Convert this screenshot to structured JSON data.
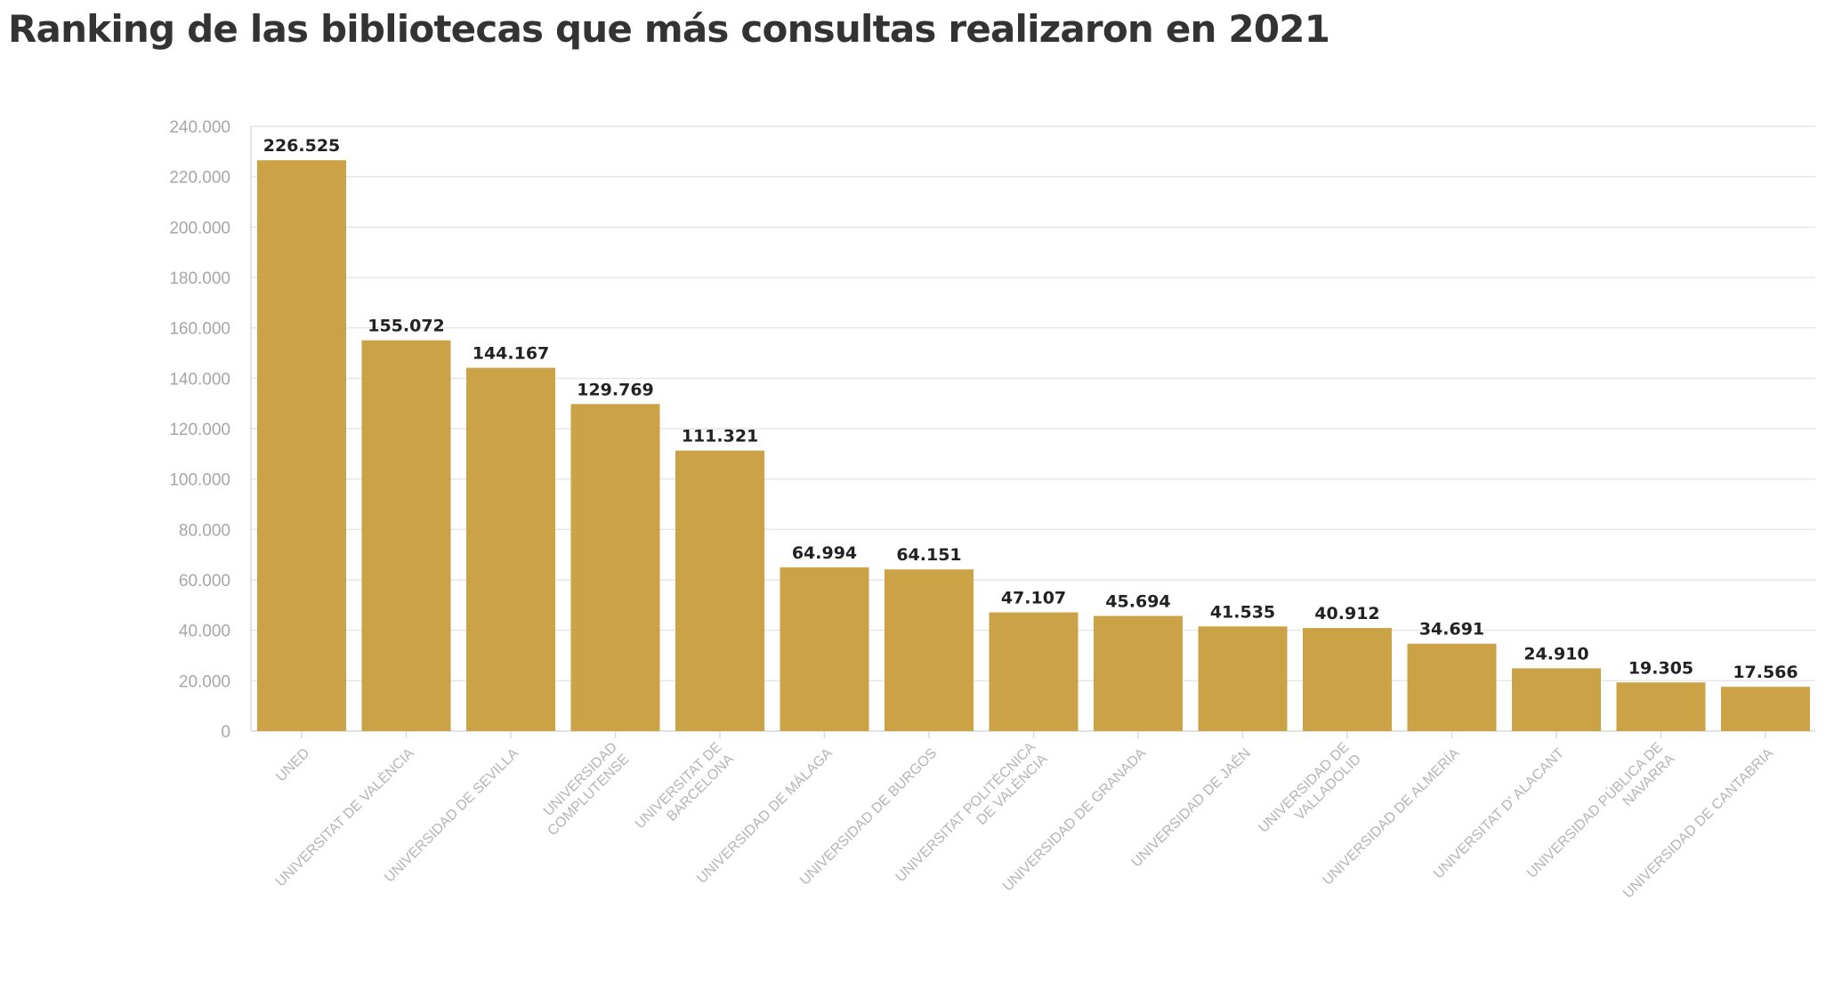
{
  "chart_data": {
    "type": "bar",
    "title": "Ranking de las bibliotecas que más consultas realizaron en 2021",
    "xlabel": "",
    "ylabel": "",
    "ylim": [
      0,
      240000
    ],
    "yticks": [
      0,
      20000,
      40000,
      60000,
      80000,
      100000,
      120000,
      140000,
      160000,
      180000,
      200000,
      220000,
      240000
    ],
    "ytick_labels": [
      "0",
      "20.000",
      "40.000",
      "60.000",
      "80.000",
      "100.000",
      "120.000",
      "140.000",
      "160.000",
      "180.000",
      "200.000",
      "220.000",
      "240.000"
    ],
    "grid": true,
    "legend": "none",
    "bar_color": "#cba246",
    "categories": [
      "UNED",
      "UNIVERSITAT DE VALÈNCIA",
      "UNIVERSIDAD DE SEVILLA",
      "UNIVERSIDAD COMPLUTENSE",
      "UNIVERSITAT DE BARCELONA",
      "UNIVERSIDAD DE MÁLAGA",
      "UNIVERSIDAD DE BURGOS",
      "UNIVERSITAT POLITÈCNICA DE VALÈNCIA",
      "UNIVERSIDAD DE GRANADA",
      "UNIVERSIDAD DE JAÉN",
      "UNIVERSIDAD DE VALLADOLID",
      "UNIVERSIDAD DE ALMERÍA",
      "UNIVERSITAT D' ALACANT",
      "UNIVERSIDAD PÚBLICA DE NAVARRA",
      "UNIVERSIDAD DE CANTABRIA"
    ],
    "category_label_lines": [
      [
        "UNED"
      ],
      [
        "UNIVERSITAT DE VALÈNCIA"
      ],
      [
        "UNIVERSIDAD DE SEVILLA"
      ],
      [
        "UNIVERSIDAD",
        "COMPLUTENSE"
      ],
      [
        "UNIVERSITAT DE",
        "BARCELONA"
      ],
      [
        "UNIVERSIDAD DE MÁLAGA"
      ],
      [
        "UNIVERSIDAD DE BURGOS"
      ],
      [
        "UNIVERSITAT POLITÈCNICA",
        "DE VALÈNCIA"
      ],
      [
        "UNIVERSIDAD DE GRANADA"
      ],
      [
        "UNIVERSIDAD DE JAÉN"
      ],
      [
        "UNIVERSIDAD DE",
        "VALLADOLID"
      ],
      [
        "UNIVERSIDAD DE ALMERÍA"
      ],
      [
        "UNIVERSITAT D' ALACANT"
      ],
      [
        "UNIVERSIDAD PÚBLICA DE",
        "NAVARRA"
      ],
      [
        "UNIVERSIDAD DE CANTABRIA"
      ]
    ],
    "values": [
      226525,
      155072,
      144167,
      129769,
      111321,
      64994,
      64151,
      47107,
      45694,
      41535,
      40912,
      34691,
      24910,
      19305,
      17566
    ],
    "value_labels": [
      "226.525",
      "155.072",
      "144.167",
      "129.769",
      "111.321",
      "64.994",
      "64.151",
      "47.107",
      "45.694",
      "41.535",
      "40.912",
      "34.691",
      "24.910",
      "19.305",
      "17.566"
    ]
  }
}
